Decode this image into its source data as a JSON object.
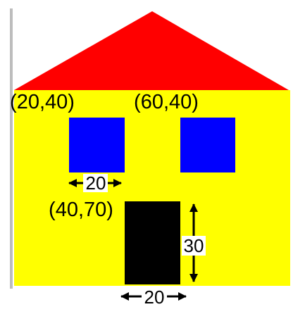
{
  "colors": {
    "roof": "#ff0000",
    "wall": "#ffff00",
    "window": "#0000ff",
    "door": "#000000",
    "scrollbar": "#bdbdbd",
    "arrow": "#000000",
    "label_bg": "#ffffff"
  },
  "labels": {
    "left_window_coord": "(20,40)",
    "right_window_coord": "(60,40)",
    "door_coord": "(40,70)"
  },
  "dimensions": {
    "window_width": "20",
    "door_height": "30",
    "door_width": "20"
  }
}
